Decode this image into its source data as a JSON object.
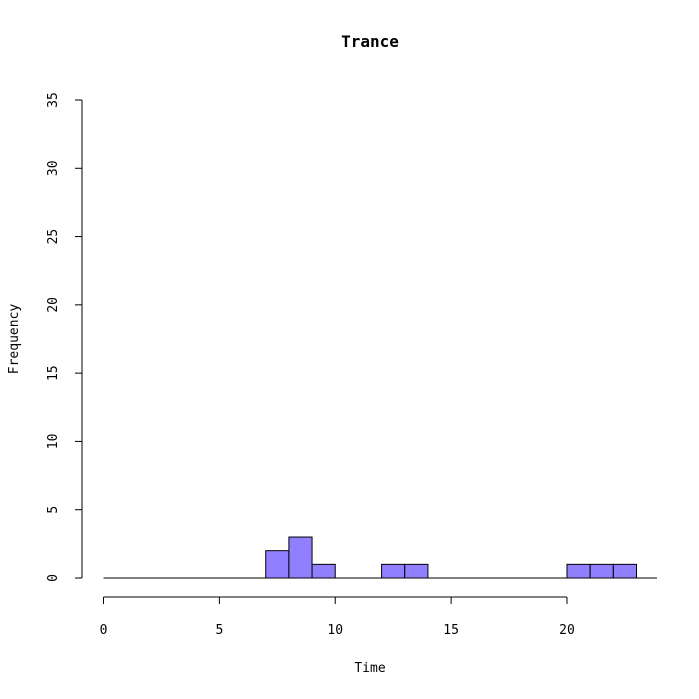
{
  "chart_data": {
    "type": "bar",
    "title": "Trance",
    "xlabel": "Time",
    "ylabel": "Frequency",
    "bin_width": 1,
    "bins": [
      {
        "x0": 0,
        "x1": 1,
        "count": 0
      },
      {
        "x0": 1,
        "x1": 2,
        "count": 0
      },
      {
        "x0": 2,
        "x1": 3,
        "count": 0
      },
      {
        "x0": 3,
        "x1": 4,
        "count": 0
      },
      {
        "x0": 4,
        "x1": 5,
        "count": 0
      },
      {
        "x0": 5,
        "x1": 6,
        "count": 0
      },
      {
        "x0": 6,
        "x1": 7,
        "count": 0
      },
      {
        "x0": 7,
        "x1": 8,
        "count": 2
      },
      {
        "x0": 8,
        "x1": 9,
        "count": 3
      },
      {
        "x0": 9,
        "x1": 10,
        "count": 1
      },
      {
        "x0": 10,
        "x1": 11,
        "count": 0
      },
      {
        "x0": 11,
        "x1": 12,
        "count": 0
      },
      {
        "x0": 12,
        "x1": 13,
        "count": 1
      },
      {
        "x0": 13,
        "x1": 14,
        "count": 1
      },
      {
        "x0": 14,
        "x1": 15,
        "count": 0
      },
      {
        "x0": 15,
        "x1": 16,
        "count": 0
      },
      {
        "x0": 16,
        "x1": 17,
        "count": 0
      },
      {
        "x0": 17,
        "x1": 18,
        "count": 0
      },
      {
        "x0": 18,
        "x1": 19,
        "count": 0
      },
      {
        "x0": 19,
        "x1": 20,
        "count": 0
      },
      {
        "x0": 20,
        "x1": 21,
        "count": 1
      },
      {
        "x0": 21,
        "x1": 22,
        "count": 1
      },
      {
        "x0": 22,
        "x1": 23,
        "count": 1
      }
    ],
    "xlim": [
      0,
      23
    ],
    "ylim": [
      0,
      35
    ],
    "xticks": [
      0,
      5,
      10,
      15,
      20
    ],
    "xtick_labels": [
      "0",
      "5",
      "10",
      "15",
      "20"
    ],
    "yticks": [
      0,
      5,
      10,
      15,
      20,
      25,
      30,
      35
    ],
    "ytick_labels": [
      "0",
      "5",
      "10",
      "15",
      "20",
      "25",
      "30",
      "35"
    ],
    "bar_color": "#9080ff",
    "grid": false
  }
}
